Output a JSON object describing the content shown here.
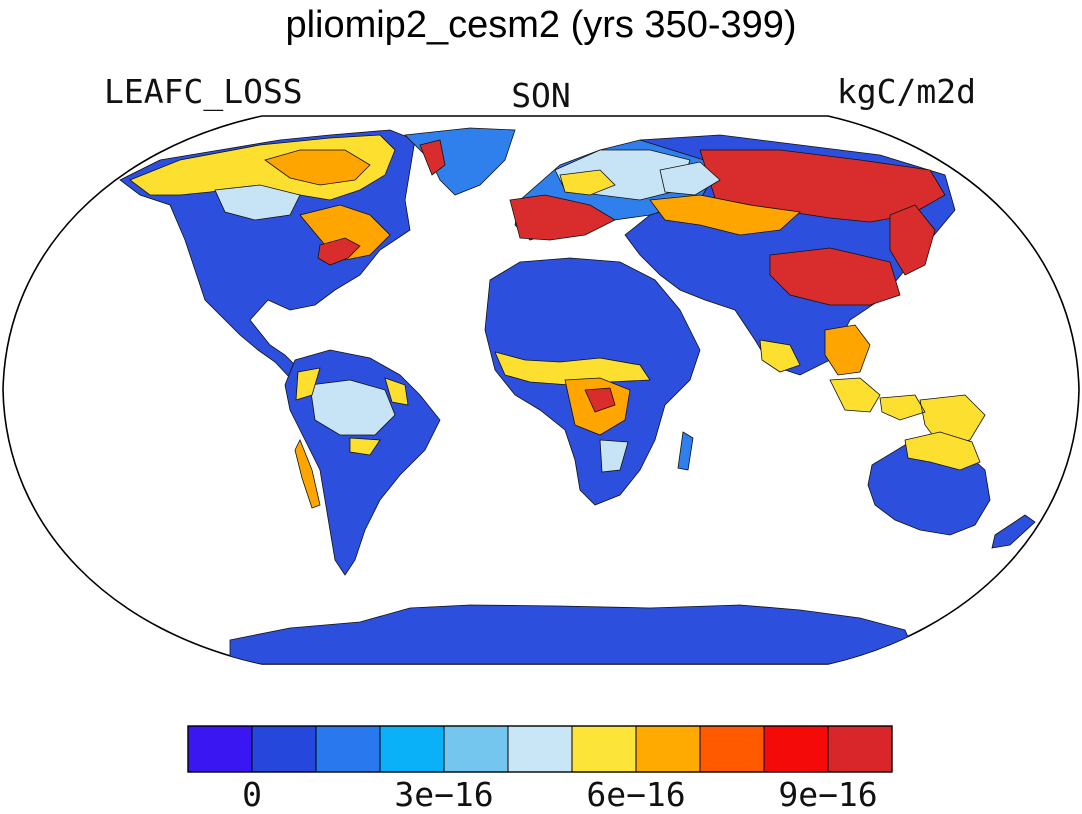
{
  "header": {
    "title": "pliomip2_cesm2 (yrs 350-399)",
    "variable": "LEAFC_LOSS",
    "season": "SON",
    "units": "kgC/m2d"
  },
  "map": {
    "projection": "Robinson",
    "background": "#ffffff",
    "land_levels": {
      "0": "#2c4fdd",
      "1": "#2f80ec",
      "2": "#c6e4f5",
      "3": "#fde02f",
      "4": "#ffa500",
      "5": "#d92d2d"
    }
  },
  "colorbar": {
    "colors": [
      "#3a16f2",
      "#2547dc",
      "#2a78ee",
      "#0ab0f8",
      "#74c6ef",
      "#c8e6f6",
      "#fde438",
      "#ffaa00",
      "#ff5a00",
      "#f50a0a",
      "#d8262a"
    ],
    "tick_labels": [
      "0",
      "3e−16",
      "6e−16",
      "9e−16"
    ]
  }
}
